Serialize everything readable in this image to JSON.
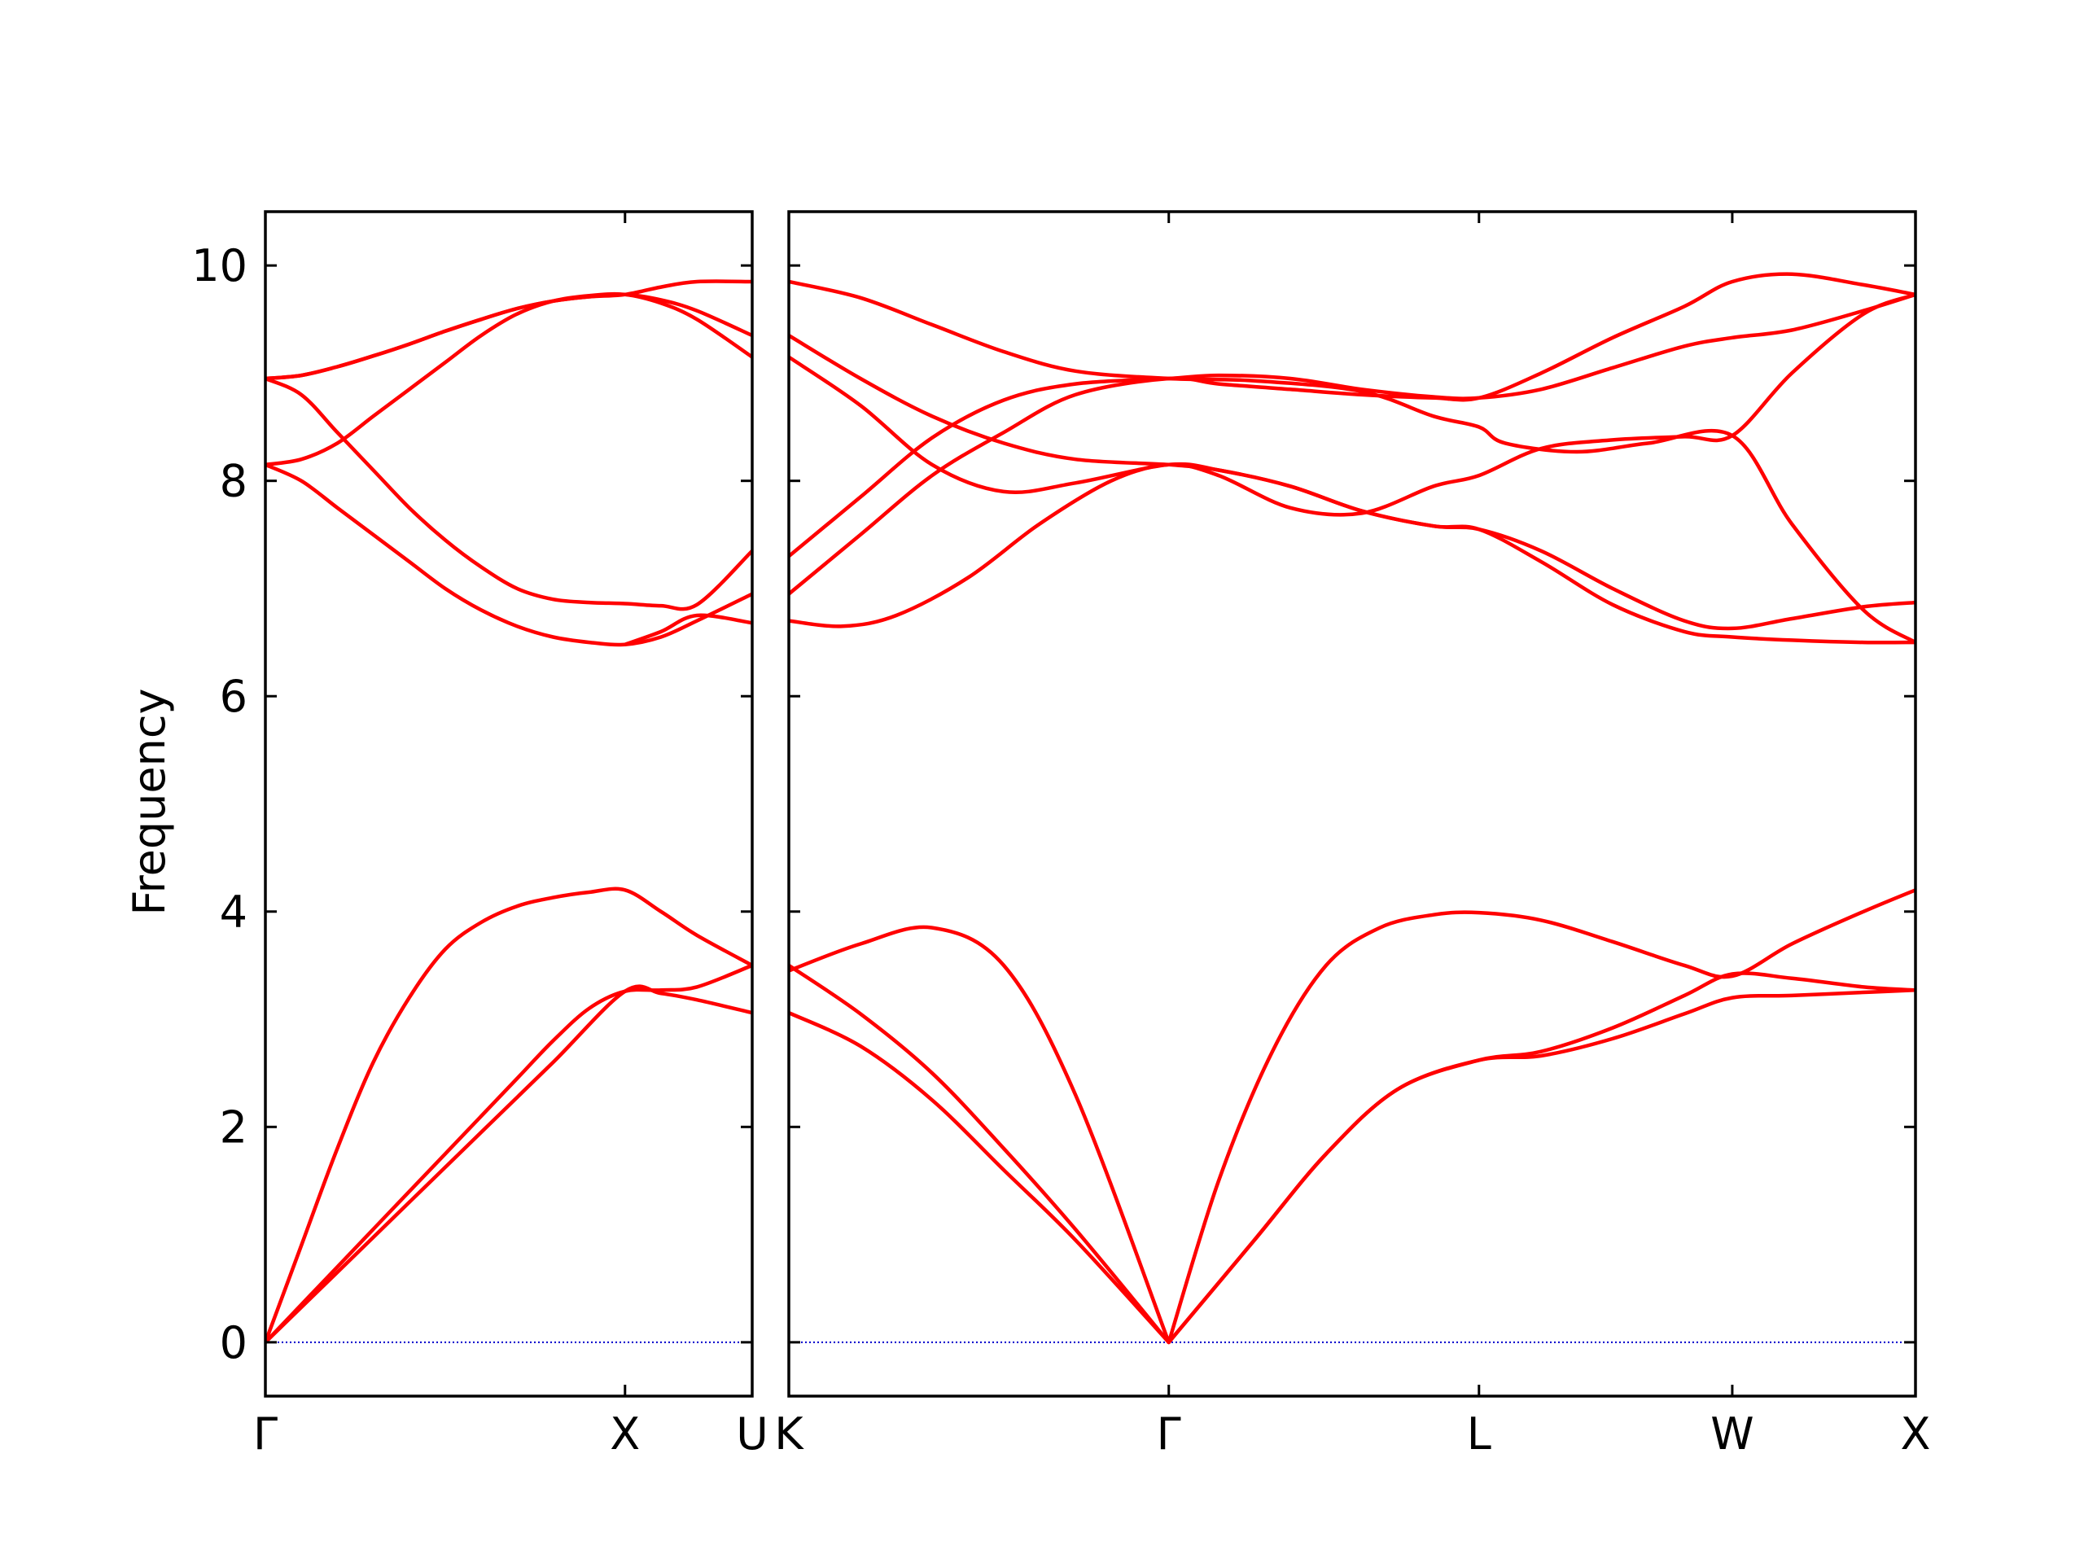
{
  "chart_data": {
    "type": "line",
    "title": "",
    "ylabel": "Frequency",
    "ylim": [
      -0.5,
      10.5
    ],
    "yticks": [
      0,
      2,
      4,
      6,
      8,
      10
    ],
    "line_color": "#ff0000",
    "zero_line_color": "#0000cc",
    "panels": [
      {
        "xrange": [
          0,
          1.3536
        ],
        "tick_positions": [
          0,
          1.0,
          1.3536
        ],
        "tick_labels": [
          "Γ",
          "X",
          "U"
        ],
        "series": [
          {
            "x": [
              0,
              0.1,
              0.2,
              0.3,
              0.4,
              0.5,
              0.6,
              0.7,
              0.8,
              0.9,
              1.0,
              1.1,
              1.2,
              1.3536
            ],
            "y": [
              0,
              0.9,
              1.8,
              2.6,
              3.2,
              3.65,
              3.9,
              4.05,
              4.13,
              4.18,
              4.2,
              4.0,
              3.78,
              3.5
            ]
          },
          {
            "x": [
              0,
              0.1,
              0.2,
              0.3,
              0.4,
              0.5,
              0.6,
              0.7,
              0.8,
              0.9,
              1.0,
              1.1,
              1.2,
              1.3536
            ],
            "y": [
              0,
              0.35,
              0.7,
              1.05,
              1.4,
              1.75,
              2.1,
              2.45,
              2.8,
              3.1,
              3.26,
              3.27,
              3.3,
              3.5
            ]
          },
          {
            "x": [
              0,
              0.2,
              0.4,
              0.6,
              0.8,
              1.0,
              1.1,
              1.2,
              1.3536
            ],
            "y": [
              0,
              0.65,
              1.3,
              1.95,
              2.6,
              3.26,
              3.24,
              3.18,
              3.06
            ]
          },
          {
            "x": [
              0,
              0.1,
              0.2,
              0.3,
              0.4,
              0.5,
              0.6,
              0.7,
              0.8,
              0.9,
              1.0,
              1.1,
              1.2,
              1.3536
            ],
            "y": [
              8.15,
              8.0,
              7.75,
              7.5,
              7.25,
              7.0,
              6.8,
              6.65,
              6.55,
              6.5,
              6.48,
              6.55,
              6.7,
              6.95
            ]
          },
          {
            "x": [
              0,
              0.1,
              0.2,
              0.3,
              0.4,
              0.5,
              0.6,
              0.7,
              0.8,
              0.9,
              1.0,
              1.1,
              1.2,
              1.3536
            ],
            "y": [
              8.95,
              8.8,
              8.45,
              8.1,
              7.75,
              7.45,
              7.2,
              7.0,
              6.9,
              6.87,
              6.86,
              6.84,
              6.85,
              7.35
            ]
          },
          {
            "x": [
              0,
              0.1,
              0.2,
              0.3,
              0.4,
              0.5,
              0.6,
              0.7,
              0.8,
              0.9,
              1.0,
              1.1,
              1.2,
              1.3536
            ],
            "y": [
              8.15,
              8.2,
              8.35,
              8.6,
              8.85,
              9.1,
              9.35,
              9.55,
              9.67,
              9.72,
              9.73,
              9.65,
              9.5,
              9.15
            ]
          },
          {
            "x": [
              0,
              0.1,
              0.2,
              0.3,
              0.4,
              0.5,
              0.6,
              0.7,
              0.8,
              0.9,
              1.0,
              1.1,
              1.2,
              1.3536
            ],
            "y": [
              8.95,
              8.98,
              9.06,
              9.16,
              9.27,
              9.39,
              9.5,
              9.6,
              9.67,
              9.71,
              9.73,
              9.8,
              9.85,
              9.85
            ]
          },
          {
            "x": [
              0,
              0.1,
              0.2,
              0.3,
              0.4,
              0.5,
              0.6,
              0.7,
              0.8,
              0.9,
              1.0,
              1.1,
              1.2,
              1.3536
            ],
            "y": [
              8.95,
              8.98,
              9.06,
              9.16,
              9.27,
              9.39,
              9.5,
              9.6,
              9.67,
              9.71,
              9.73,
              9.68,
              9.58,
              9.35
            ]
          },
          {
            "x": [
              1.0,
              1.1,
              1.2,
              1.3536
            ],
            "y": [
              6.48,
              6.6,
              6.75,
              6.68
            ]
          }
        ]
      },
      {
        "xrange": [
          0,
          3.1453
        ],
        "tick_positions": [
          0,
          1.0607,
          1.9267,
          2.6338,
          3.1453
        ],
        "tick_labels": [
          "K",
          "Γ",
          "L",
          "W",
          "X"
        ],
        "series": [
          {
            "x": [
              0,
              0.2,
              0.4,
              0.6,
              0.8,
              1.0607
            ],
            "y": [
              3.45,
              3.7,
              3.85,
              3.5,
              2.3,
              0
            ]
          },
          {
            "x": [
              0,
              0.2,
              0.4,
              0.6,
              0.8,
              1.0607
            ],
            "y": [
              3.5,
              3.05,
              2.5,
              1.8,
              1.05,
              0
            ]
          },
          {
            "x": [
              0,
              0.2,
              0.4,
              0.6,
              0.8,
              1.0607
            ],
            "y": [
              3.06,
              2.75,
              2.25,
              1.6,
              0.95,
              0
            ]
          },
          {
            "x": [
              1.0607,
              1.2,
              1.35,
              1.5,
              1.65,
              1.8,
              1.9267,
              2.1,
              2.3,
              2.5,
              2.6338,
              2.8,
              3.0,
              3.1453
            ],
            "y": [
              0,
              1.5,
              2.7,
              3.5,
              3.85,
              3.97,
              3.99,
              3.92,
              3.72,
              3.5,
              3.4,
              3.7,
              4.0,
              4.2
            ]
          },
          {
            "x": [
              1.0607,
              1.3,
              1.5,
              1.7,
              1.9267,
              2.1,
              2.3,
              2.5,
              2.6338,
              2.8,
              3.0,
              3.1453
            ],
            "y": [
              0,
              0.95,
              1.75,
              2.35,
              2.62,
              2.7,
              2.92,
              3.22,
              3.42,
              3.38,
              3.3,
              3.27
            ]
          },
          {
            "x": [
              1.0607,
              1.3,
              1.5,
              1.7,
              1.9267,
              2.1,
              2.3,
              2.5,
              2.6338,
              2.8,
              3.0,
              3.1453
            ],
            "y": [
              0,
              0.95,
              1.75,
              2.35,
              2.62,
              2.66,
              2.82,
              3.05,
              3.2,
              3.22,
              3.25,
              3.27
            ]
          },
          {
            "x": [
              0,
              0.15,
              0.3,
              0.5,
              0.7,
              0.9,
              1.0607,
              1.2,
              1.4,
              1.6,
              1.8,
              1.9267,
              2.1,
              2.3,
              2.5,
              2.6338,
              2.8,
              3.0,
              3.1453
            ],
            "y": [
              6.7,
              6.65,
              6.75,
              7.1,
              7.6,
              8.0,
              8.15,
              8.05,
              7.75,
              7.7,
              7.95,
              8.05,
              8.3,
              8.38,
              8.41,
              8.42,
              9.0,
              9.55,
              9.73
            ]
          },
          {
            "x": [
              0,
              0.2,
              0.4,
              0.6,
              0.8,
              1.0607,
              1.2,
              1.4,
              1.6,
              1.8,
              1.9267,
              2.1,
              2.3,
              2.5,
              2.6338,
              2.8,
              3.0,
              3.1453
            ],
            "y": [
              6.95,
              7.5,
              8.05,
              8.45,
              8.8,
              8.95,
              8.9,
              8.85,
              8.8,
              8.77,
              8.77,
              9.0,
              9.33,
              9.62,
              9.85,
              9.92,
              9.82,
              9.73
            ]
          },
          {
            "x": [
              0,
              0.2,
              0.4,
              0.6,
              0.8,
              1.0607,
              1.2,
              1.4,
              1.6,
              1.8,
              1.9267,
              2.1,
              2.3,
              2.5,
              2.6338,
              2.8,
              3.0,
              3.1453
            ],
            "y": [
              7.3,
              7.85,
              8.4,
              8.75,
              8.9,
              8.95,
              8.98,
              8.95,
              8.85,
              8.78,
              8.77,
              8.85,
              9.05,
              9.25,
              9.33,
              9.4,
              9.58,
              9.73
            ]
          },
          {
            "x": [
              0,
              0.2,
              0.4,
              0.6,
              0.8,
              1.0607,
              1.2,
              1.4,
              1.6,
              1.8,
              1.9267,
              2.1,
              2.3,
              2.5,
              2.6338,
              2.8,
              3.0,
              3.1453
            ],
            "y": [
              9.15,
              8.7,
              8.15,
              7.9,
              7.98,
              8.15,
              8.1,
              7.95,
              7.72,
              7.58,
              7.55,
              7.35,
              7.0,
              6.7,
              6.63,
              6.72,
              6.83,
              6.87
            ]
          },
          {
            "x": [
              0,
              0.2,
              0.4,
              0.6,
              0.8,
              1.0607,
              1.2,
              1.4,
              1.6,
              1.8,
              1.9267,
              2.1,
              2.3,
              2.5,
              2.6338,
              2.8,
              3.0,
              3.1453
            ],
            "y": [
              9.35,
              8.95,
              8.6,
              8.35,
              8.2,
              8.15,
              8.1,
              7.95,
              7.72,
              7.58,
              7.55,
              7.25,
              6.85,
              6.6,
              6.55,
              6.52,
              6.5,
              6.5
            ]
          },
          {
            "x": [
              0,
              0.2,
              0.4,
              0.6,
              0.8,
              1.0607,
              1.3,
              1.6,
              1.8,
              1.9267,
              2.0,
              2.2,
              2.4,
              2.6338,
              2.8,
              3.0,
              3.1453
            ],
            "y": [
              9.85,
              9.7,
              9.45,
              9.2,
              9.02,
              8.95,
              8.93,
              8.83,
              8.6,
              8.5,
              8.35,
              8.27,
              8.35,
              8.42,
              7.6,
              6.8,
              6.5
            ]
          }
        ]
      }
    ]
  }
}
